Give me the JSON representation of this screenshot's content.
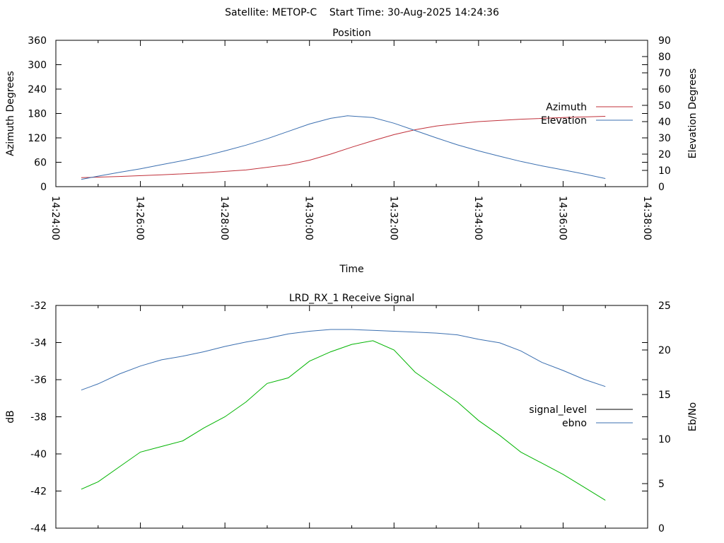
{
  "header": {
    "title": "Satellite: METOP-C    Start Time: 30-Aug-2025 14:24:36"
  },
  "colors": {
    "azimuth": "#c0303a",
    "elevation": "#3b6fb0",
    "ebno": "#3b6fb0",
    "green_trace": "#00b400",
    "signal_level_legend": "#000000",
    "axes": "#000000"
  },
  "chart_data": [
    {
      "type": "line",
      "title": "Position",
      "xlabel": "Time",
      "ylabel": "Azimuth Degrees",
      "y2label": "Elevation Degrees",
      "legend_position": "right",
      "grid": false,
      "x_ticks": [
        "14:24:00",
        "14:26:00",
        "14:28:00",
        "14:30:00",
        "14:32:00",
        "14:34:00",
        "14:36:00",
        "14:38:00"
      ],
      "xlim": [
        "14:24:00",
        "14:38:00"
      ],
      "ylim": [
        0,
        360
      ],
      "y_ticks": [
        0,
        60,
        120,
        180,
        240,
        300,
        360
      ],
      "y2lim": [
        0,
        90
      ],
      "y2_ticks": [
        0,
        10,
        20,
        30,
        40,
        50,
        60,
        70,
        80,
        90
      ],
      "series": [
        {
          "name": "Azimuth",
          "axis": "y",
          "color": "#c0303a",
          "x": [
            "14:24:36",
            "14:25:30",
            "14:26:30",
            "14:27:30",
            "14:28:30",
            "14:29:30",
            "14:30:00",
            "14:30:30",
            "14:31:00",
            "14:31:30",
            "14:32:00",
            "14:32:30",
            "14:33:00",
            "14:33:30",
            "14:34:00",
            "14:35:00",
            "14:36:00",
            "14:37:00"
          ],
          "values": [
            22,
            25,
            29,
            34,
            41,
            54,
            65,
            80,
            97,
            113,
            128,
            140,
            149,
            155,
            160,
            166,
            170,
            173
          ]
        },
        {
          "name": "Elevation",
          "axis": "y2",
          "color": "#3b6fb0",
          "x": [
            "14:24:36",
            "14:25:00",
            "14:25:30",
            "14:26:00",
            "14:26:30",
            "14:27:00",
            "14:27:30",
            "14:28:00",
            "14:28:30",
            "14:29:00",
            "14:29:30",
            "14:30:00",
            "14:30:30",
            "14:30:54",
            "14:31:30",
            "14:32:00",
            "14:32:30",
            "14:33:00",
            "14:33:30",
            "14:34:00",
            "14:34:30",
            "14:35:00",
            "14:35:30",
            "14:36:00",
            "14:36:30",
            "14:37:00"
          ],
          "values": [
            4.5,
            6.5,
            8.8,
            11,
            13.5,
            16,
            18.8,
            22,
            25.5,
            29.5,
            34,
            38.5,
            42,
            43.6,
            42.5,
            39,
            34.5,
            30,
            25.7,
            22,
            18.7,
            15.5,
            12.8,
            10.3,
            7.8,
            5
          ]
        }
      ]
    },
    {
      "type": "line",
      "title": "LRD_RX_1 Receive Signal",
      "xlabel": "",
      "ylabel": "dB",
      "y2label": "Eb/No",
      "legend_position": "right",
      "grid": false,
      "xlim": [
        "14:24:00",
        "14:38:00"
      ],
      "ylim": [
        -44,
        -32
      ],
      "y_ticks": [
        -44,
        -42,
        -40,
        -38,
        -36,
        -34,
        -32
      ],
      "y2lim": [
        0,
        25
      ],
      "y2_ticks": [
        0,
        5,
        10,
        15,
        20,
        25
      ],
      "series": [
        {
          "name": "signal_level",
          "axis": "y",
          "color": "#000000",
          "x": [],
          "values": []
        },
        {
          "name": "ebno",
          "axis": "y2",
          "color": "#3b6fb0",
          "x": [
            "14:24:36",
            "14:25:00",
            "14:25:30",
            "14:26:00",
            "14:26:30",
            "14:27:00",
            "14:27:30",
            "14:28:00",
            "14:28:30",
            "14:29:00",
            "14:29:30",
            "14:30:00",
            "14:30:30",
            "14:31:00",
            "14:31:30",
            "14:32:00",
            "14:32:30",
            "14:33:00",
            "14:33:30",
            "14:34:00",
            "14:34:30",
            "14:35:00",
            "14:35:30",
            "14:36:00",
            "14:36:30",
            "14:37:00"
          ],
          "values": [
            15.5,
            16.2,
            17.3,
            18.2,
            18.9,
            19.3,
            19.8,
            20.4,
            20.9,
            21.3,
            21.8,
            22.1,
            22.3,
            22.3,
            22.2,
            22.1,
            22.0,
            21.9,
            21.7,
            21.2,
            20.8,
            19.9,
            18.6,
            17.7,
            16.7,
            15.9
          ]
        },
        {
          "name": "",
          "axis": "y",
          "color": "#00b400",
          "x": [
            "14:24:36",
            "14:25:00",
            "14:25:30",
            "14:26:00",
            "14:26:30",
            "14:27:00",
            "14:27:30",
            "14:28:00",
            "14:28:30",
            "14:29:00",
            "14:29:30",
            "14:30:00",
            "14:30:30",
            "14:31:00",
            "14:31:30",
            "14:32:00",
            "14:32:30",
            "14:33:00",
            "14:33:30",
            "14:34:00",
            "14:34:30",
            "14:35:00",
            "14:35:30",
            "14:36:00",
            "14:36:30",
            "14:37:00"
          ],
          "values": [
            -41.9,
            -41.5,
            -40.7,
            -39.9,
            -39.6,
            -39.3,
            -38.6,
            -38.0,
            -37.2,
            -36.2,
            -35.9,
            -35.0,
            -34.5,
            -34.1,
            -33.9,
            -34.4,
            -35.6,
            -36.4,
            -37.2,
            -38.2,
            -39.0,
            -39.9,
            -40.5,
            -41.1,
            -41.8,
            -42.5
          ]
        }
      ]
    }
  ]
}
